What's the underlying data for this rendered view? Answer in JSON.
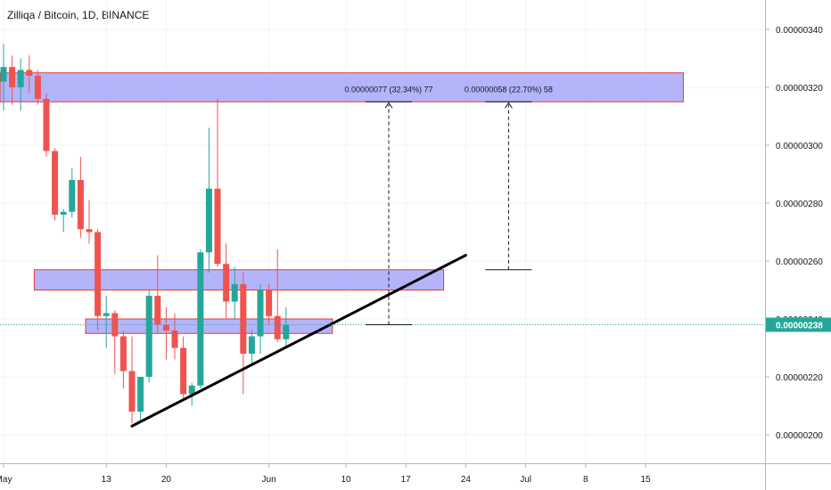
{
  "header": {
    "title": "Zilliqa / Bitcoin, 1D, BINANCE"
  },
  "colors": {
    "up": "#26a69a",
    "down": "#ef5350",
    "zone_fill": "#9b9bfa",
    "zone_border": "#e53935",
    "trendline": "#000000",
    "price_line": "#26a69a",
    "price_badge": "#26a69a",
    "axis_text": "#131722",
    "grid": "#f0f3fa"
  },
  "chart_data": {
    "type": "candlestick",
    "symbol": "Zilliqa / Bitcoin",
    "interval": "1D",
    "exchange": "BINANCE",
    "y_ticks": [
      "0.00000200",
      "0.00000220",
      "0.00000240",
      "0.00000260",
      "0.00000280",
      "0.00000300",
      "0.00000320",
      "0.00000340"
    ],
    "x_ticks": [
      "May",
      "13",
      "20",
      "Jun",
      "10",
      "17",
      "24",
      "Jul",
      "8",
      "15"
    ],
    "last_price_label": "0.00000238",
    "last_price": 2.38e-06,
    "candles": [
      {
        "d": "May 1",
        "o": 322,
        "h": 335,
        "l": 312,
        "c": 327
      },
      {
        "d": "May 2",
        "o": 327,
        "h": 331,
        "l": 314,
        "c": 320
      },
      {
        "d": "May 3",
        "o": 320,
        "h": 330,
        "l": 312,
        "c": 326
      },
      {
        "d": "May 4",
        "o": 326,
        "h": 331,
        "l": 318,
        "c": 324
      },
      {
        "d": "May 5",
        "o": 324,
        "h": 326,
        "l": 314,
        "c": 316
      },
      {
        "d": "May 6",
        "o": 316,
        "h": 318,
        "l": 296,
        "c": 298
      },
      {
        "d": "May 7",
        "o": 298,
        "h": 299,
        "l": 274,
        "c": 276
      },
      {
        "d": "May 8",
        "o": 276,
        "h": 278,
        "l": 270,
        "c": 277
      },
      {
        "d": "May 9",
        "o": 277,
        "h": 292,
        "l": 275,
        "c": 288
      },
      {
        "d": "May 10",
        "o": 288,
        "h": 296,
        "l": 268,
        "c": 271
      },
      {
        "d": "May 11",
        "o": 271,
        "h": 281,
        "l": 266,
        "c": 270
      },
      {
        "d": "May 12",
        "o": 270,
        "h": 271,
        "l": 236,
        "c": 241
      },
      {
        "d": "May 13",
        "o": 241,
        "h": 248,
        "l": 230,
        "c": 242
      },
      {
        "d": "May 14",
        "o": 242,
        "h": 243,
        "l": 221,
        "c": 234
      },
      {
        "d": "May 15",
        "o": 234,
        "h": 236,
        "l": 216,
        "c": 222
      },
      {
        "d": "May 16",
        "o": 222,
        "h": 234,
        "l": 204,
        "c": 208
      },
      {
        "d": "May 17",
        "o": 208,
        "h": 220,
        "l": 205,
        "c": 220
      },
      {
        "d": "May 18",
        "o": 220,
        "h": 250,
        "l": 218,
        "c": 248
      },
      {
        "d": "May 19",
        "o": 248,
        "h": 262,
        "l": 235,
        "c": 238
      },
      {
        "d": "May 20",
        "o": 238,
        "h": 244,
        "l": 226,
        "c": 236
      },
      {
        "d": "May 21",
        "o": 236,
        "h": 242,
        "l": 226,
        "c": 230
      },
      {
        "d": "May 22",
        "o": 230,
        "h": 234,
        "l": 212,
        "c": 214
      },
      {
        "d": "May 23",
        "o": 214,
        "h": 218,
        "l": 210,
        "c": 217
      },
      {
        "d": "May 24",
        "o": 217,
        "h": 264,
        "l": 216,
        "c": 263
      },
      {
        "d": "May 25",
        "o": 263,
        "h": 306,
        "l": 256,
        "c": 285
      },
      {
        "d": "May 26",
        "o": 285,
        "h": 316,
        "l": 258,
        "c": 259
      },
      {
        "d": "May 27",
        "o": 259,
        "h": 266,
        "l": 240,
        "c": 246
      },
      {
        "d": "May 28",
        "o": 246,
        "h": 258,
        "l": 240,
        "c": 252
      },
      {
        "d": "May 29",
        "o": 252,
        "h": 256,
        "l": 214,
        "c": 228
      },
      {
        "d": "May 30",
        "o": 228,
        "h": 236,
        "l": 224,
        "c": 234
      },
      {
        "d": "May 31",
        "o": 234,
        "h": 252,
        "l": 228,
        "c": 250
      },
      {
        "d": "Jun 1",
        "o": 250,
        "h": 252,
        "l": 238,
        "c": 241
      },
      {
        "d": "Jun 2",
        "o": 241,
        "h": 264,
        "l": 232,
        "c": 233
      },
      {
        "d": "Jun 3",
        "o": 233,
        "h": 244,
        "l": 230,
        "c": 238
      }
    ],
    "zones": [
      {
        "from": "May 1",
        "to": "Jul 19",
        "low": 3.15e-06,
        "high": 3.25e-06
      },
      {
        "from": "May 5",
        "to": "Jun 21",
        "low": 2.5e-06,
        "high": 2.57e-06
      },
      {
        "from": "May 11",
        "to": "Jun 8",
        "low": 2.35e-06,
        "high": 2.4e-06
      }
    ],
    "trendline": {
      "from": {
        "d": "May 16",
        "price": 2.03e-06
      },
      "to": {
        "d": "Jun 24",
        "price": 2.62e-06
      }
    },
    "measures": [
      {
        "label": "0.00000077 (32.34%) 77",
        "x": "Jun 15",
        "from_price": 2.38e-06,
        "to_price": 3.15e-06
      },
      {
        "label": "0.00000058 (22.70%) 58",
        "x": "Jun 29",
        "from_price": 2.57e-06,
        "to_price": 3.15e-06
      }
    ]
  }
}
